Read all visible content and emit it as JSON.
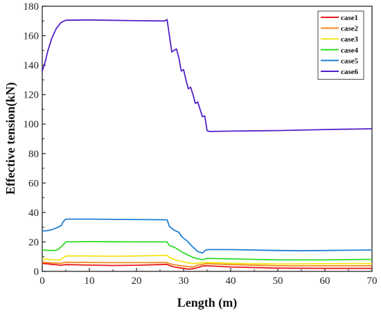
{
  "chart_data": {
    "type": "line",
    "xlabel": "Length (m)",
    "ylabel": "Effective tension(kN)",
    "xlim": [
      0,
      70
    ],
    "ylim": [
      0,
      180
    ],
    "xticks": [
      0,
      10,
      20,
      30,
      40,
      50,
      60,
      70
    ],
    "yticks": [
      0,
      20,
      40,
      60,
      80,
      100,
      120,
      140,
      160,
      180
    ],
    "grid": false,
    "legend_position": "top-right",
    "series": [
      {
        "name": "case1",
        "color": "#e8191a",
        "points": [
          [
            0,
            5.5
          ],
          [
            2,
            4.8
          ],
          [
            4,
            4.2
          ],
          [
            5,
            4.6
          ],
          [
            10,
            4.3
          ],
          [
            15,
            4.0
          ],
          [
            20,
            4.2
          ],
          [
            25,
            4.6
          ],
          [
            26.5,
            4.8
          ],
          [
            27,
            4.0
          ],
          [
            28,
            3.0
          ],
          [
            29,
            2.5
          ],
          [
            30,
            2.0
          ],
          [
            31,
            1.5
          ],
          [
            32,
            1.8
          ],
          [
            33,
            2.6
          ],
          [
            34,
            3.6
          ],
          [
            35,
            3.8
          ],
          [
            40,
            3.0
          ],
          [
            50,
            2.2
          ],
          [
            60,
            2.0
          ],
          [
            70,
            2.0
          ]
        ]
      },
      {
        "name": "case2",
        "color": "#f08a1c",
        "points": [
          [
            0,
            6.2
          ],
          [
            2,
            5.8
          ],
          [
            4,
            5.5
          ],
          [
            5,
            6.2
          ],
          [
            10,
            6.0
          ],
          [
            15,
            5.9
          ],
          [
            20,
            5.9
          ],
          [
            25,
            6.0
          ],
          [
            26.5,
            6.0
          ],
          [
            27,
            5.2
          ],
          [
            28,
            4.6
          ],
          [
            29,
            4.0
          ],
          [
            30,
            3.6
          ],
          [
            31,
            3.2
          ],
          [
            32,
            3.0
          ],
          [
            33,
            4.2
          ],
          [
            34,
            4.8
          ],
          [
            35,
            5.2
          ],
          [
            40,
            4.6
          ],
          [
            50,
            3.8
          ],
          [
            60,
            3.8
          ],
          [
            70,
            3.8
          ]
        ]
      },
      {
        "name": "case3",
        "color": "#f5e61a",
        "points": [
          [
            0,
            8.5
          ],
          [
            2,
            8.0
          ],
          [
            3,
            7.6
          ],
          [
            4,
            8.2
          ],
          [
            5,
            10.5
          ],
          [
            10,
            10.5
          ],
          [
            15,
            10.3
          ],
          [
            20,
            10.5
          ],
          [
            25,
            10.8
          ],
          [
            26.5,
            10.8
          ],
          [
            27,
            9.5
          ],
          [
            28,
            8.0
          ],
          [
            29,
            7.2
          ],
          [
            30,
            6.5
          ],
          [
            31,
            5.8
          ],
          [
            32,
            5.3
          ],
          [
            33,
            5.5
          ],
          [
            34,
            5.9
          ],
          [
            35,
            6.0
          ],
          [
            40,
            5.5
          ],
          [
            50,
            5.0
          ],
          [
            60,
            5.2
          ],
          [
            70,
            5.3
          ]
        ]
      },
      {
        "name": "case4",
        "color": "#2ddb25",
        "points": [
          [
            0,
            14.5
          ],
          [
            2,
            14.2
          ],
          [
            3,
            14.3
          ],
          [
            4,
            16.5
          ],
          [
            5,
            20.0
          ],
          [
            10,
            20.2
          ],
          [
            15,
            20.1
          ],
          [
            20,
            20.0
          ],
          [
            25,
            20.0
          ],
          [
            26.5,
            20.0
          ],
          [
            27,
            17.5
          ],
          [
            28,
            16.5
          ],
          [
            29,
            14.5
          ],
          [
            30,
            12.5
          ],
          [
            31,
            11.0
          ],
          [
            32,
            9.5
          ],
          [
            33,
            8.5
          ],
          [
            34,
            8.0
          ],
          [
            35,
            8.8
          ],
          [
            40,
            8.5
          ],
          [
            50,
            7.8
          ],
          [
            60,
            7.8
          ],
          [
            70,
            8.2
          ]
        ]
      },
      {
        "name": "case5",
        "color": "#1f7fd4",
        "points": [
          [
            0,
            27.5
          ],
          [
            1,
            27.6
          ],
          [
            2,
            28.3
          ],
          [
            3,
            29.5
          ],
          [
            4,
            31.0
          ],
          [
            4.5,
            34.0
          ],
          [
            5,
            35.5
          ],
          [
            10,
            35.5
          ],
          [
            15,
            35.3
          ],
          [
            20,
            35.2
          ],
          [
            26.5,
            35.0
          ],
          [
            27,
            30.5
          ],
          [
            28,
            28.0
          ],
          [
            29,
            26.5
          ],
          [
            29.5,
            24.0
          ],
          [
            30,
            22.5
          ],
          [
            31,
            20.0
          ],
          [
            31.5,
            18.0
          ],
          [
            32,
            16.5
          ],
          [
            33,
            13.5
          ],
          [
            34,
            12.5
          ],
          [
            34.5,
            14.0
          ],
          [
            35,
            14.8
          ],
          [
            40,
            14.8
          ],
          [
            50,
            14.2
          ],
          [
            55,
            14.0
          ],
          [
            60,
            14.2
          ],
          [
            70,
            14.5
          ]
        ]
      },
      {
        "name": "case6",
        "color": "#5320c6",
        "points": [
          [
            0,
            136
          ],
          [
            0.6,
            142
          ],
          [
            1.2,
            150
          ],
          [
            2,
            158
          ],
          [
            3,
            165
          ],
          [
            4,
            169
          ],
          [
            5,
            170.5
          ],
          [
            10,
            170.7
          ],
          [
            20,
            170.2
          ],
          [
            26,
            170.0
          ],
          [
            26.5,
            171
          ],
          [
            27,
            160
          ],
          [
            27.5,
            149
          ],
          [
            28,
            150
          ],
          [
            28.5,
            151
          ],
          [
            29,
            145
          ],
          [
            29.5,
            136
          ],
          [
            30,
            137
          ],
          [
            30.5,
            130
          ],
          [
            31,
            124
          ],
          [
            31.5,
            125
          ],
          [
            32,
            120
          ],
          [
            32.5,
            114
          ],
          [
            33,
            115
          ],
          [
            33.5,
            110
          ],
          [
            34,
            105
          ],
          [
            34.5,
            105.5
          ],
          [
            35,
            95.5
          ],
          [
            35.5,
            95
          ],
          [
            40,
            95.2
          ],
          [
            50,
            95.6
          ],
          [
            60,
            96.3
          ],
          [
            70,
            96.8
          ]
        ]
      }
    ]
  }
}
